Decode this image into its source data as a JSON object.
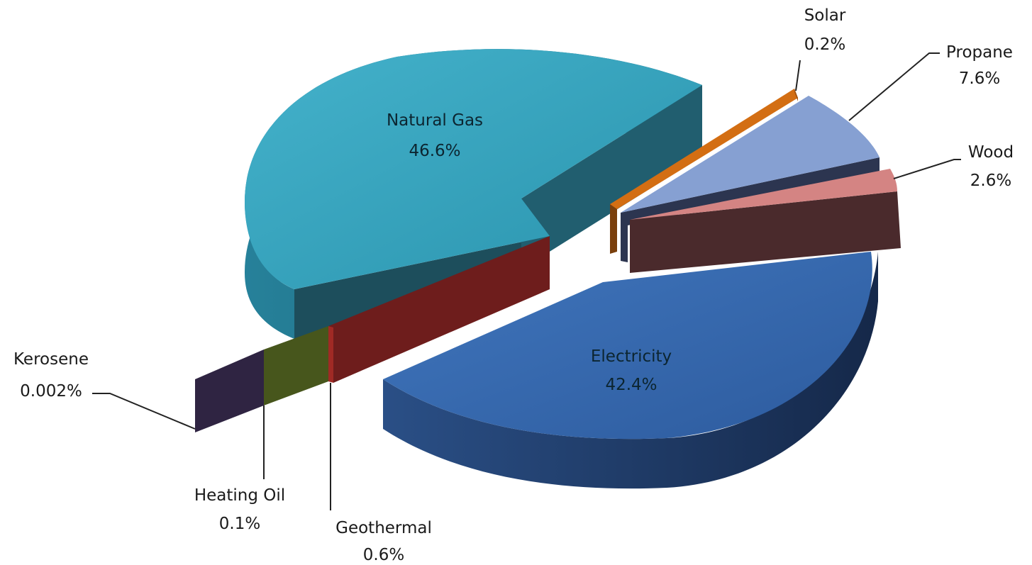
{
  "chart_data": {
    "type": "pie",
    "title": "",
    "style": "3d-exploded",
    "slices": [
      {
        "label": "Natural Gas",
        "value": 46.6,
        "value_label": "46.6%",
        "color": "#2f9fb9"
      },
      {
        "label": "Solar",
        "value": 0.2,
        "value_label": "0.2%",
        "color": "#d36e13"
      },
      {
        "label": "Propane",
        "value": 7.6,
        "value_label": "7.6%",
        "color": "#86a0d2"
      },
      {
        "label": "Wood",
        "value": 2.6,
        "value_label": "2.6%",
        "color": "#d48483"
      },
      {
        "label": "Electricity",
        "value": 42.4,
        "value_label": "42.4%",
        "color": "#3467ae"
      },
      {
        "label": "Geothermal",
        "value": 0.6,
        "value_label": "0.6%",
        "color": "#a02a25"
      },
      {
        "label": "Heating Oil",
        "value": 0.1,
        "value_label": "0.1%",
        "color": "#5b7024"
      },
      {
        "label": "Kerosene",
        "value": 0.002,
        "value_label": "0.002%",
        "color": "#3e2f55"
      }
    ]
  }
}
